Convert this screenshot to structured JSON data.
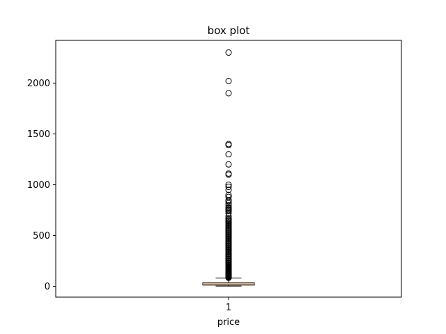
{
  "chart_data": {
    "type": "box",
    "title": "box plot",
    "xlabel": "price",
    "ylabel": "",
    "categories": [
      "1"
    ],
    "ylim": [
      -105,
      2420
    ],
    "yticks": [
      0,
      500,
      1000,
      1500,
      2000
    ],
    "ytick_labels": [
      "0",
      "500",
      "1000",
      "1500",
      "2000"
    ],
    "grid": false,
    "colors": {
      "box": "#000000",
      "median": "#cc8a52",
      "outlier_edge": "#000000"
    },
    "boxes": [
      {
        "name": "",
        "category": "1",
        "whisker_low": 4,
        "q1": 13,
        "median": 24,
        "q3": 37,
        "whisker_high": 82,
        "outliers": [
          85,
          88,
          92,
          96,
          100,
          105,
          110,
          115,
          120,
          125,
          130,
          135,
          140,
          145,
          150,
          155,
          160,
          165,
          170,
          175,
          180,
          185,
          190,
          195,
          200,
          210,
          220,
          230,
          240,
          250,
          260,
          270,
          280,
          290,
          300,
          310,
          320,
          330,
          340,
          350,
          360,
          370,
          380,
          390,
          400,
          410,
          420,
          430,
          440,
          450,
          460,
          470,
          480,
          490,
          500,
          510,
          520,
          530,
          540,
          550,
          560,
          570,
          580,
          590,
          600,
          610,
          620,
          630,
          640,
          650,
          660,
          670,
          690,
          720,
          740,
          750,
          760,
          770,
          780,
          800,
          820,
          840,
          850,
          880,
          900,
          950,
          980,
          1000,
          1100,
          1110,
          1200,
          1300,
          1390,
          1400,
          1900,
          2020,
          2300
        ]
      }
    ]
  }
}
